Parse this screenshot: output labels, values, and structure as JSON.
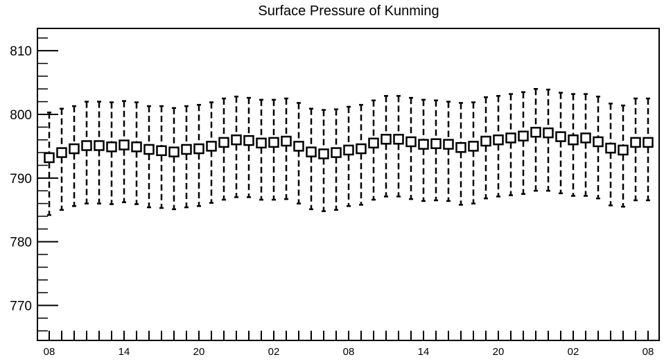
{
  "chart_data": {
    "type": "box",
    "title": "Surface Pressure of Kunming",
    "xlabel": "",
    "ylabel": "",
    "ylim": [
      764.5,
      813.5
    ],
    "y_ticks": [
      770,
      780,
      790,
      800,
      810
    ],
    "x_tick_labels": [
      "08",
      "14",
      "20",
      "02",
      "08",
      "14",
      "20",
      "02",
      "08"
    ],
    "grid": false,
    "legend": "none",
    "series": [
      {
        "values": [
          793.2,
          794.0,
          794.6,
          795.1,
          795.1,
          794.9,
          795.2,
          794.9,
          794.5,
          794.3,
          794.1,
          794.5,
          794.6,
          795.0,
          795.6,
          796.0,
          795.9,
          795.5,
          795.6,
          795.8,
          795.0,
          794.1,
          793.8,
          794.0,
          794.4,
          794.6,
          795.5,
          796.1,
          796.1,
          795.7,
          795.3,
          795.4,
          795.3,
          794.8,
          795.0,
          795.8,
          796.0,
          796.3,
          796.6,
          797.2,
          797.1,
          796.5,
          796.0,
          796.3,
          795.7,
          794.7,
          794.4,
          795.6,
          795.6
        ],
        "upper_whisker": [
          800.3,
          800.9,
          801.3,
          802.0,
          802.0,
          801.9,
          802.1,
          801.9,
          801.3,
          801.3,
          801.0,
          801.3,
          801.5,
          801.9,
          802.5,
          802.8,
          802.6,
          802.3,
          802.3,
          802.5,
          801.8,
          800.9,
          800.7,
          800.8,
          801.2,
          801.5,
          802.2,
          802.9,
          802.9,
          802.6,
          802.3,
          802.2,
          802.0,
          801.8,
          801.9,
          802.7,
          802.9,
          803.2,
          803.5,
          804.0,
          803.9,
          803.4,
          803.2,
          803.2,
          802.8,
          801.7,
          801.4,
          802.5,
          802.5
        ],
        "lower_whisker": [
          784.2,
          785.0,
          785.6,
          786.0,
          786.0,
          785.9,
          786.2,
          785.9,
          785.4,
          785.3,
          785.1,
          785.4,
          785.6,
          786.1,
          786.6,
          787.0,
          787.0,
          786.6,
          786.6,
          786.7,
          786.0,
          785.1,
          784.8,
          785.0,
          785.6,
          785.8,
          786.6,
          787.1,
          787.1,
          786.7,
          786.4,
          786.5,
          786.4,
          785.8,
          786.0,
          786.8,
          787.1,
          787.3,
          787.5,
          788.0,
          788.0,
          787.6,
          787.2,
          787.2,
          786.8,
          785.7,
          785.5,
          786.5,
          786.5
        ]
      }
    ]
  }
}
